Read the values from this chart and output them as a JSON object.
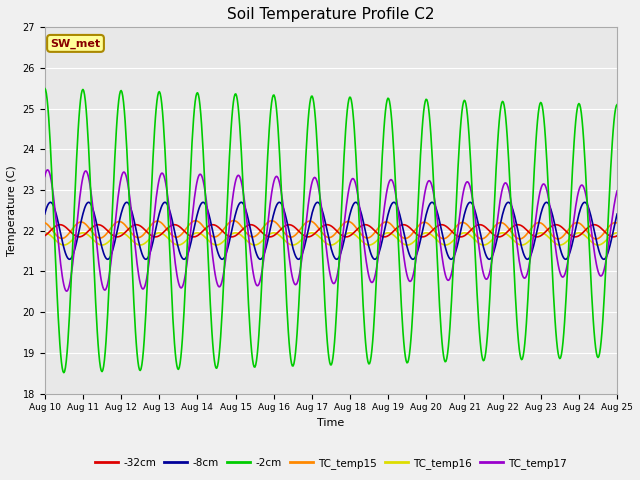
{
  "title": "Soil Temperature Profile C2",
  "xlabel": "Time",
  "ylabel": "Temperature (C)",
  "ylim": [
    18.0,
    27.0
  ],
  "yticks": [
    18.0,
    19.0,
    20.0,
    21.0,
    22.0,
    23.0,
    24.0,
    25.0,
    26.0,
    27.0
  ],
  "x_tick_labels": [
    "Aug 10",
    "Aug 11",
    "Aug 12",
    "Aug 13",
    "Aug 14",
    "Aug 15",
    "Aug 16",
    "Aug 17",
    "Aug 18",
    "Aug 19",
    "Aug 20",
    "Aug 21",
    "Aug 22",
    "Aug 23",
    "Aug 24",
    "Aug 25"
  ],
  "annotation_text": "SW_met",
  "annotation_bg": "#ffff99",
  "annotation_border": "#aa8800",
  "annotation_text_color": "#880000",
  "fig_bg": "#f0f0f0",
  "plot_bg": "#e8e8e8",
  "lines": {
    "neg32cm": {
      "color": "#dd0000",
      "lw": 1.2,
      "label": "-32cm"
    },
    "neg8cm": {
      "color": "#000099",
      "lw": 1.2,
      "label": "-8cm"
    },
    "neg2cm": {
      "color": "#00cc00",
      "lw": 1.2,
      "label": "-2cm"
    },
    "tc15": {
      "color": "#ff8800",
      "lw": 1.2,
      "label": "TC_temp15"
    },
    "tc16": {
      "color": "#dddd00",
      "lw": 1.2,
      "label": "TC_temp16"
    },
    "tc17": {
      "color": "#9900cc",
      "lw": 1.2,
      "label": "TC_temp17"
    }
  }
}
